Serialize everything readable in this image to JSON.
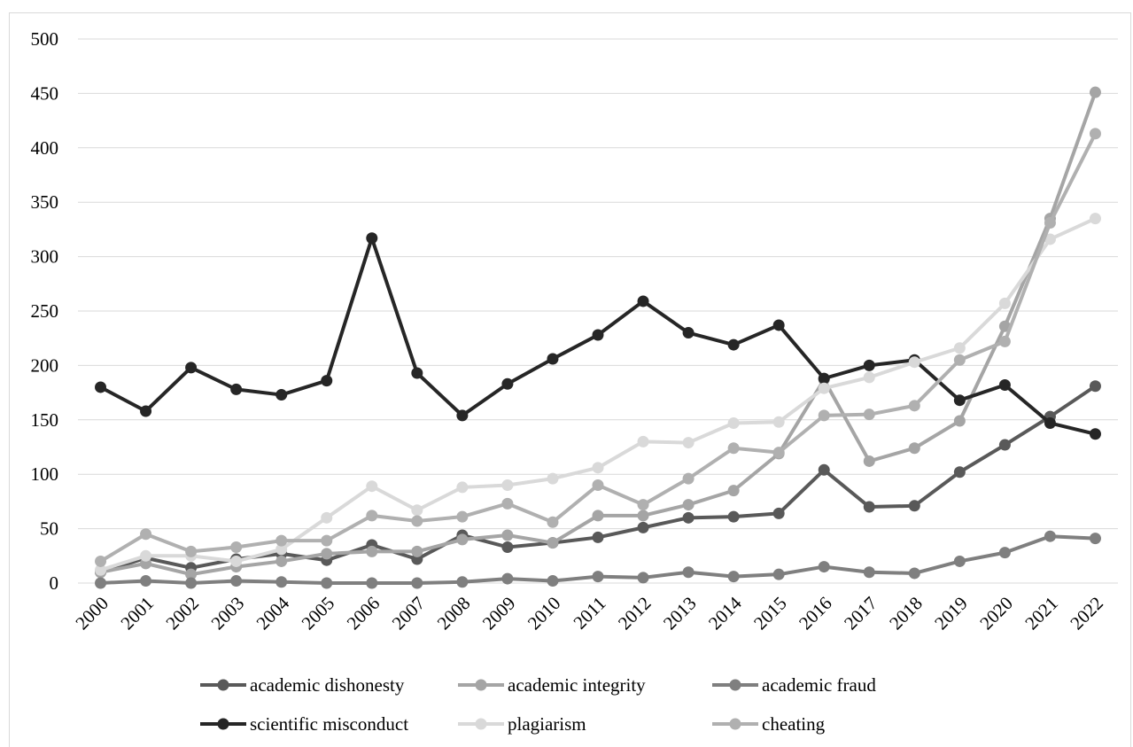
{
  "chart_data": {
    "type": "line",
    "title": "",
    "xlabel": "",
    "ylabel": "",
    "categories": [
      "2000",
      "2001",
      "2002",
      "2003",
      "2004",
      "2005",
      "2006",
      "2007",
      "2008",
      "2009",
      "2010",
      "2011",
      "2012",
      "2013",
      "2014",
      "2015",
      "2016",
      "2017",
      "2018",
      "2019",
      "2020",
      "2021",
      "2022"
    ],
    "ylim": [
      0,
      500
    ],
    "yticks": [
      "0",
      "50",
      "100",
      "150",
      "200",
      "250",
      "300",
      "350",
      "400",
      "450",
      "500"
    ],
    "grid": "horizontal",
    "legend_position": "bottom",
    "series": [
      {
        "name": "academic dishonesty",
        "color": "#595959",
        "values": [
          10,
          23,
          14,
          22,
          27,
          21,
          35,
          22,
          44,
          33,
          37,
          42,
          51,
          60,
          61,
          64,
          104,
          70,
          71,
          102,
          127,
          153,
          181
        ]
      },
      {
        "name": "academic integrity",
        "color": "#a5a5a5",
        "values": [
          10,
          18,
          8,
          15,
          20,
          27,
          29,
          29,
          40,
          44,
          37,
          62,
          62,
          72,
          85,
          119,
          187,
          112,
          124,
          149,
          236,
          335,
          451
        ]
      },
      {
        "name": "academic fraud",
        "color": "#7f7f7f",
        "values": [
          0,
          2,
          0,
          2,
          1,
          0,
          0,
          0,
          1,
          4,
          2,
          6,
          5,
          10,
          6,
          8,
          15,
          10,
          9,
          20,
          28,
          43,
          41
        ]
      },
      {
        "name": "scientific misconduct",
        "color": "#262626",
        "values": [
          180,
          158,
          198,
          178,
          173,
          186,
          317,
          193,
          154,
          183,
          206,
          228,
          259,
          230,
          219,
          237,
          188,
          200,
          205,
          168,
          182,
          147,
          137
        ]
      },
      {
        "name": "plagiarism",
        "color": "#d9d9d9",
        "values": [
          12,
          25,
          25,
          20,
          31,
          60,
          89,
          67,
          88,
          90,
          96,
          106,
          130,
          129,
          147,
          148,
          179,
          189,
          203,
          216,
          257,
          316,
          335
        ]
      },
      {
        "name": "cheating",
        "color": "#b0b0b0",
        "values": [
          20,
          45,
          29,
          33,
          39,
          39,
          62,
          57,
          61,
          73,
          56,
          90,
          72,
          96,
          124,
          120,
          154,
          155,
          163,
          205,
          222,
          331,
          413
        ]
      }
    ]
  }
}
